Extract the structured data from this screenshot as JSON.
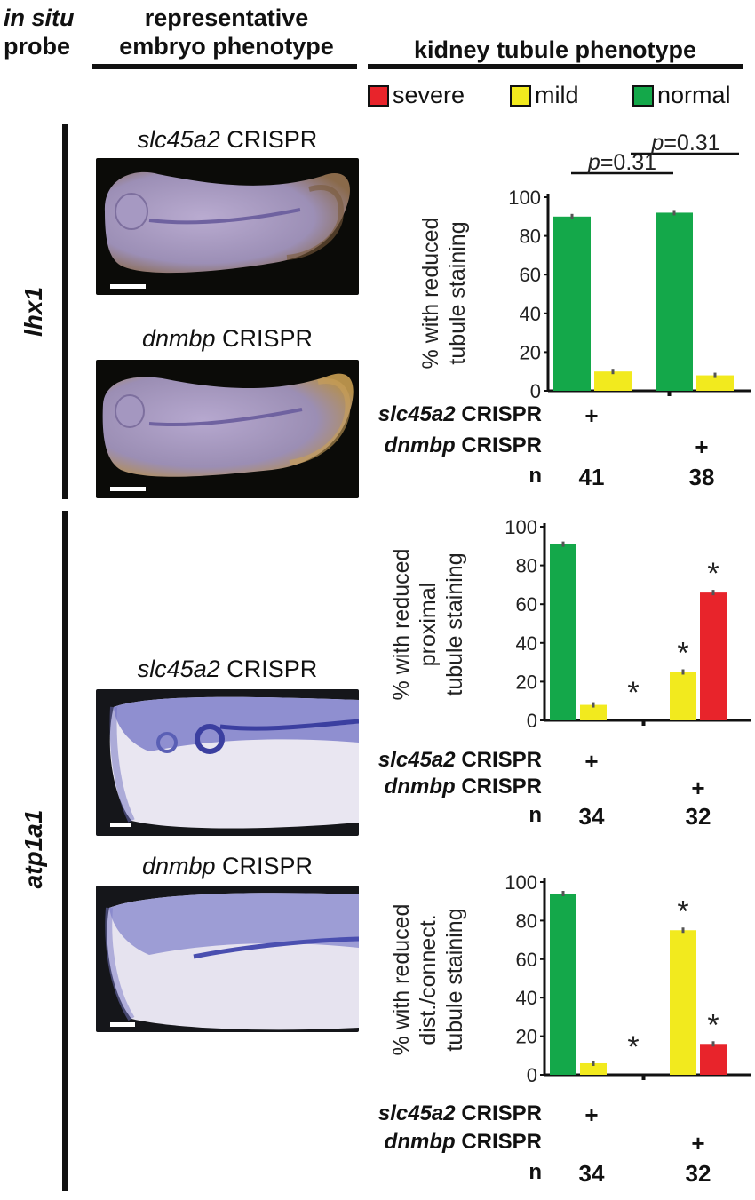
{
  "headers": {
    "probe_line1": "in situ",
    "probe_line2": "probe",
    "embryo_line1": "representative",
    "embryo_line2": "embryo phenotype",
    "kidney": "kidney tubule phenotype"
  },
  "legend": [
    {
      "label": "severe",
      "color": "#e8242b"
    },
    {
      "label": "mild",
      "color": "#f2ea1e"
    },
    {
      "label": "normal",
      "color": "#14a84a"
    }
  ],
  "rows": [
    {
      "label": "lhx1"
    },
    {
      "label": "atp1a1"
    }
  ],
  "photos": {
    "p1": {
      "gene": "slc45a2",
      "suffix": "CRISPR"
    },
    "p2": {
      "gene": "dnmbp",
      "suffix": "CRISPR"
    },
    "p3": {
      "gene": "slc45a2",
      "suffix": "CRISPR"
    },
    "p4": {
      "gene": "dnmbp",
      "suffix": "CRISPR"
    }
  },
  "condition_labels": {
    "slc": "slc45a2",
    "dnm": "dnmbp",
    "crispr": "CRISPR",
    "n": "n",
    "plus": "+"
  },
  "chart_data": [
    {
      "type": "bar",
      "ylabel_lines": [
        "% with reduced",
        "tubule staining"
      ],
      "ylim": [
        0,
        100
      ],
      "yticks": [
        0,
        20,
        40,
        60,
        80,
        100
      ],
      "series": [
        {
          "name": "normal",
          "values": [
            90,
            92
          ]
        },
        {
          "name": "mild",
          "values": [
            10,
            8
          ]
        },
        {
          "name": "severe",
          "values": [
            0,
            0
          ]
        }
      ],
      "groups": [
        "slc45a2 CRISPR",
        "dnmbp CRISPR"
      ],
      "n": [
        "41",
        "38"
      ],
      "significance": [
        {
          "label": "p",
          "value": "=0.31"
        },
        {
          "label": "p",
          "value": "=0.31"
        }
      ],
      "stars": []
    },
    {
      "type": "bar",
      "ylabel_lines": [
        "% with reduced",
        "proximal",
        "tubule staining"
      ],
      "ylim": [
        0,
        100
      ],
      "yticks": [
        0,
        20,
        40,
        60,
        80,
        100
      ],
      "series": [
        {
          "name": "normal",
          "values": [
            91,
            0
          ]
        },
        {
          "name": "mild",
          "values": [
            8,
            25
          ]
        },
        {
          "name": "severe",
          "values": [
            0,
            66
          ]
        }
      ],
      "groups": [
        "slc45a2 CRISPR",
        "dnmbp CRISPR"
      ],
      "n": [
        "34",
        "32"
      ],
      "stars": [
        "*",
        "*",
        "*"
      ]
    },
    {
      "type": "bar",
      "ylabel_lines": [
        "% with reduced",
        "dist./connect.",
        "tubule staining"
      ],
      "ylim": [
        0,
        100
      ],
      "yticks": [
        0,
        20,
        40,
        60,
        80,
        100
      ],
      "series": [
        {
          "name": "normal",
          "values": [
            94,
            0
          ]
        },
        {
          "name": "mild",
          "values": [
            6,
            75
          ]
        },
        {
          "name": "severe",
          "values": [
            0,
            16
          ]
        }
      ],
      "groups": [
        "slc45a2 CRISPR",
        "dnmbp CRISPR"
      ],
      "n": [
        "34",
        "32"
      ],
      "stars": [
        "*",
        "*",
        "*"
      ]
    }
  ]
}
